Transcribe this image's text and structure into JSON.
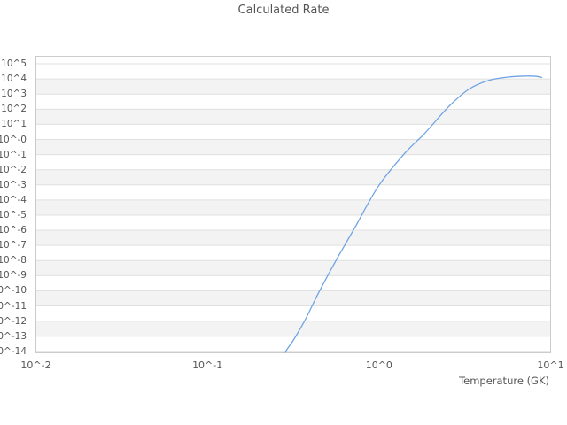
{
  "title": "Calculated Rate",
  "colors": {
    "line": "#6fa3e3",
    "stripe": "#f3f3f3",
    "grid": "#e0e0e0",
    "plot_border": "#cccccc",
    "text": "#555555",
    "background": "#ffffff"
  },
  "chart_data": {
    "type": "line",
    "title": "Calculated Rate",
    "xlabel": "Temperature (GK)",
    "ylabel": "",
    "x_scale": "log",
    "y_scale": "log",
    "xlim_exp": [
      -2,
      1
    ],
    "ylim_exp": [
      -14.1,
      5.5
    ],
    "grid": true,
    "legend": false,
    "x_tick_labels": [
      "10^-2",
      "10^-1",
      "10^0",
      "10^1"
    ],
    "x_tick_exps": [
      -2,
      -1,
      0,
      1
    ],
    "y_tick_labels": [
      "10^5",
      "10^4",
      "10^3",
      "10^2",
      "10^1",
      "10^-0",
      "10^-1",
      "10^-2",
      "10^-3",
      "10^-4",
      "10^-5",
      "10^-6",
      "10^-7",
      "10^-8",
      "10^-9",
      "10^-10",
      "10^-11",
      "10^-12",
      "10^-13",
      "10^-14"
    ],
    "y_tick_exps": [
      5,
      4,
      3,
      2,
      1,
      0,
      -1,
      -2,
      -3,
      -4,
      -5,
      -6,
      -7,
      -8,
      -9,
      -10,
      -11,
      -12,
      -13,
      -14
    ],
    "series": [
      {
        "name": "Calculated Rate",
        "color": "#6fa3e3",
        "points": [
          {
            "T": 0.281,
            "rate": 7.6e-15
          },
          {
            "T": 0.294,
            "rate": 1.6e-14
          },
          {
            "T": 0.313,
            "rate": 4.4e-14
          },
          {
            "T": 0.332,
            "rate": 1.3e-13
          },
          {
            "T": 0.373,
            "rate": 1.35e-12
          },
          {
            "T": 0.446,
            "rate": 8e-11
          },
          {
            "T": 0.566,
            "rate": 1.2e-08
          },
          {
            "T": 0.718,
            "rate": 1.3e-06
          },
          {
            "T": 0.99,
            "rate": 0.0008
          },
          {
            "T": 1.41,
            "rate": 0.12
          },
          {
            "T": 1.85,
            "rate": 2.6
          },
          {
            "T": 2.55,
            "rate": 150
          },
          {
            "T": 3.36,
            "rate": 2200
          },
          {
            "T": 4.41,
            "rate": 8300
          },
          {
            "T": 5.73,
            "rate": 13500
          },
          {
            "T": 7.1,
            "rate": 15500
          },
          {
            "T": 8.17,
            "rate": 15100
          },
          {
            "T": 8.87,
            "rate": 12600
          }
        ]
      }
    ]
  }
}
